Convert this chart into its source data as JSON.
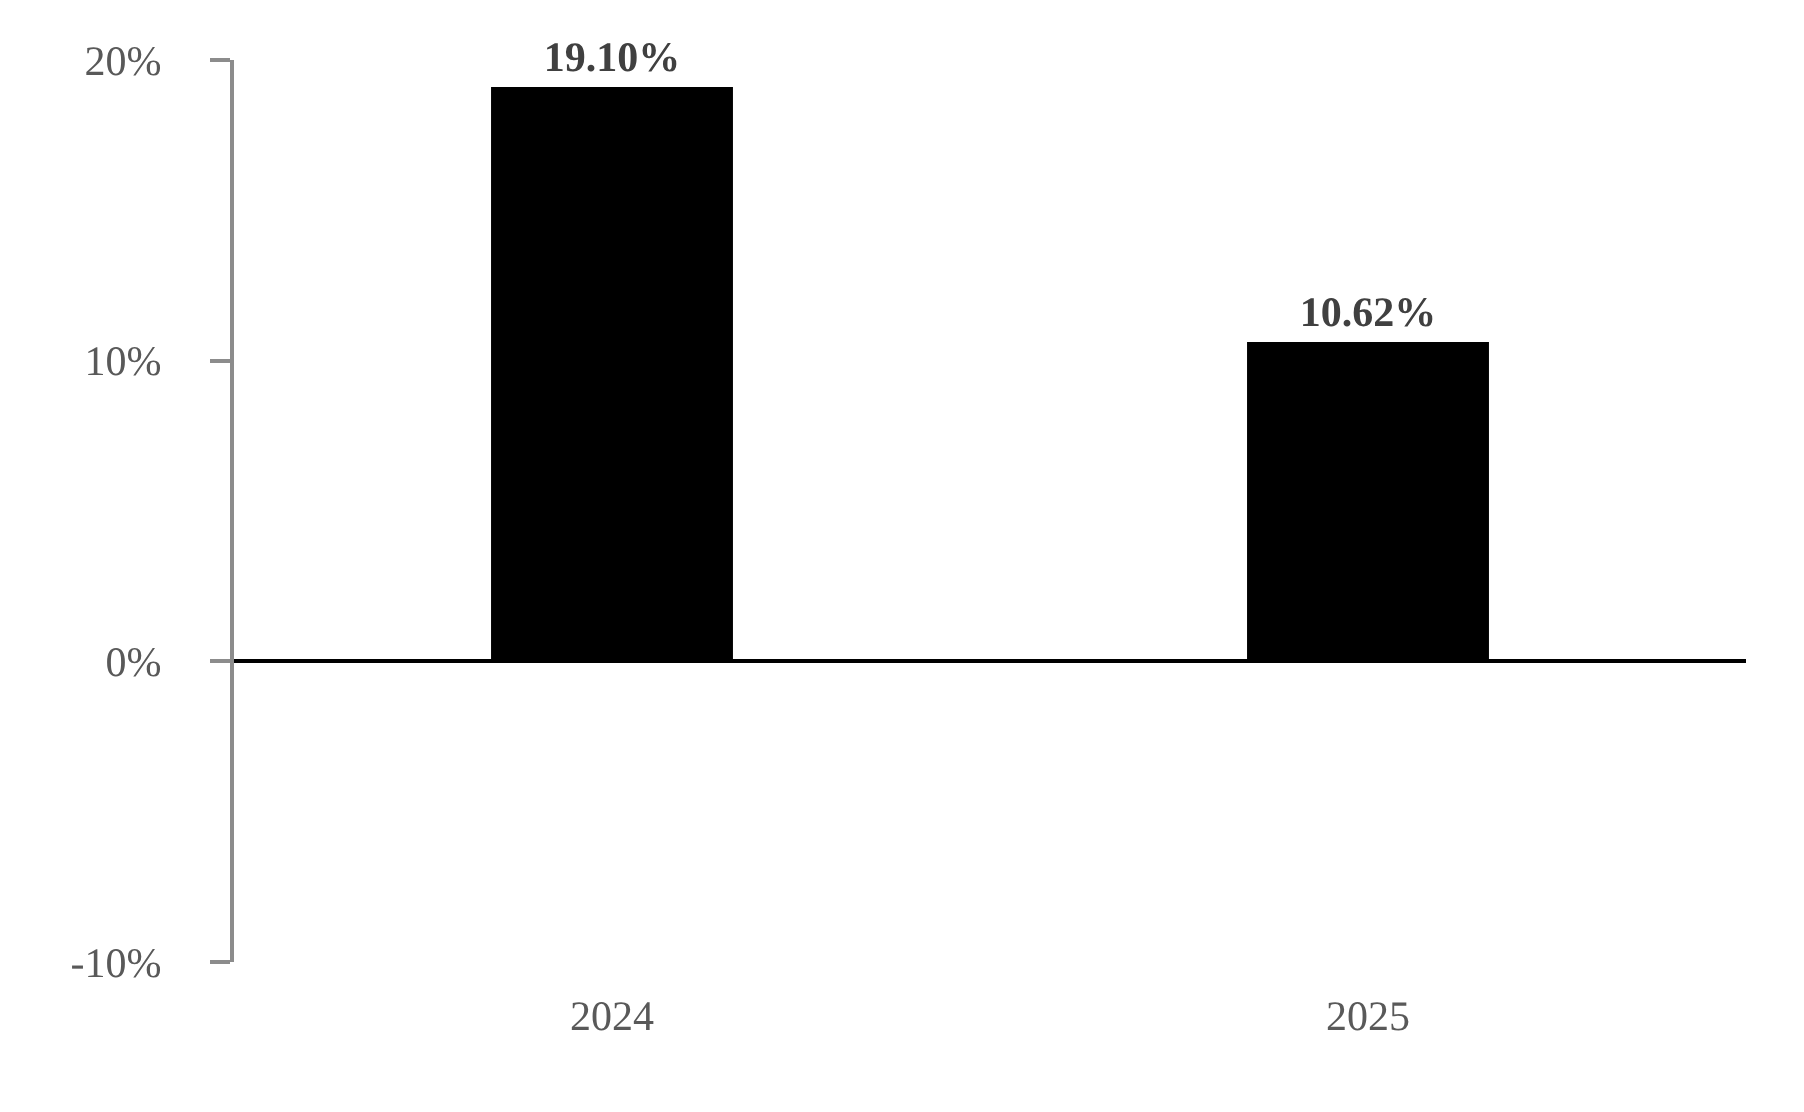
{
  "chart_data": {
    "type": "bar",
    "categories": [
      "2024",
      "2025"
    ],
    "values": [
      19.1,
      10.62
    ],
    "color": "#000000",
    "value_labels": [
      "19.10%",
      "10.62%"
    ],
    "ylim": [
      -10,
      20
    ],
    "yticks": [
      {
        "value": -10,
        "label": "-10%"
      },
      {
        "value": 0,
        "label": "0%"
      },
      {
        "value": 10,
        "label": "10%"
      },
      {
        "value": 20,
        "label": "20%"
      }
    ]
  }
}
